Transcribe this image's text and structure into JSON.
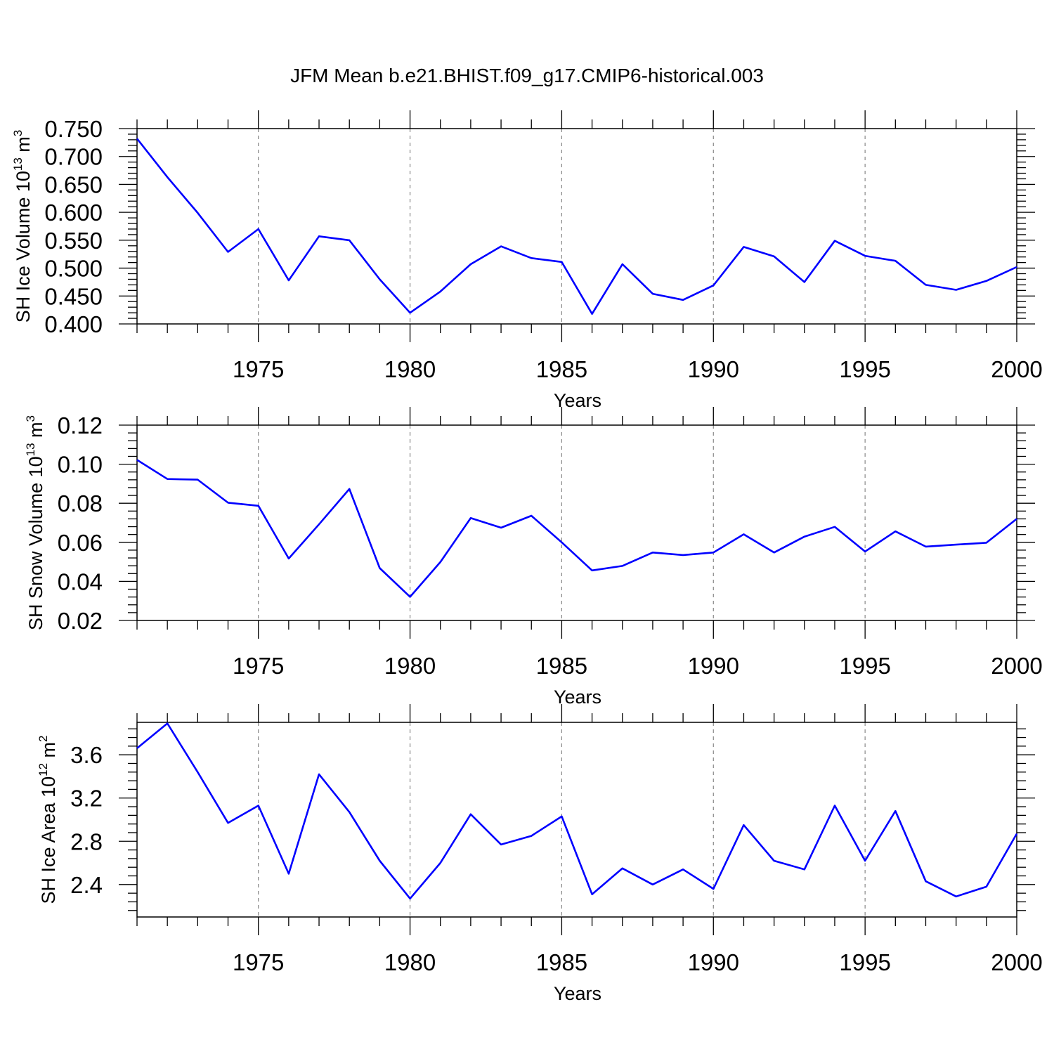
{
  "title": "JFM Mean b.e21.BHIST.f09_g17.CMIP6-historical.003",
  "line_color": "#0000ff",
  "chart_data": [
    {
      "type": "line",
      "title": "",
      "xlabel": "Years",
      "ylabel": {
        "prefix": "SH Ice Volume 10",
        "exp": "13",
        "unit": " m",
        "unit_exp": "3"
      },
      "xlim": [
        1971,
        2000
      ],
      "ylim": [
        0.4,
        0.75
      ],
      "yticks": [
        "0.400",
        "0.450",
        "0.500",
        "0.550",
        "0.600",
        "0.650",
        "0.700",
        "0.750"
      ],
      "ytick_values": [
        0.4,
        0.45,
        0.5,
        0.55,
        0.6,
        0.65,
        0.7,
        0.75
      ],
      "xticks": [
        "1975",
        "1980",
        "1985",
        "1990",
        "1995",
        "2000"
      ],
      "xtick_values": [
        1975,
        1980,
        1985,
        1990,
        1995,
        2000
      ],
      "x": [
        1971,
        1972,
        1973,
        1974,
        1975,
        1976,
        1977,
        1978,
        1979,
        1980,
        1981,
        1982,
        1983,
        1984,
        1985,
        1986,
        1987,
        1988,
        1989,
        1990,
        1991,
        1992,
        1993,
        1994,
        1995,
        1996,
        1997,
        1998,
        1999,
        2000
      ],
      "series": [
        {
          "values": [
            0.732,
            0.663,
            0.599,
            0.529,
            0.57,
            0.478,
            0.557,
            0.55,
            0.48,
            0.42,
            0.458,
            0.507,
            0.539,
            0.518,
            0.511,
            0.418,
            0.507,
            0.454,
            0.443,
            0.469,
            0.538,
            0.521,
            0.475,
            0.549,
            0.522,
            0.513,
            0.47,
            0.461,
            0.477,
            0.502
          ]
        }
      ]
    },
    {
      "type": "line",
      "title": "",
      "xlabel": "Years",
      "ylabel": {
        "prefix": "SH Snow Volume 10",
        "exp": "13",
        "unit": " m",
        "unit_exp": "3"
      },
      "xlim": [
        1971,
        2000
      ],
      "ylim": [
        0.02,
        0.12
      ],
      "yticks": [
        "0.02",
        "0.04",
        "0.06",
        "0.08",
        "0.10",
        "0.12"
      ],
      "ytick_values": [
        0.02,
        0.04,
        0.06,
        0.08,
        0.1,
        0.12
      ],
      "xticks": [
        "1975",
        "1980",
        "1985",
        "1990",
        "1995",
        "2000"
      ],
      "xtick_values": [
        1975,
        1980,
        1985,
        1990,
        1995,
        2000
      ],
      "x": [
        1971,
        1972,
        1973,
        1974,
        1975,
        1976,
        1977,
        1978,
        1979,
        1980,
        1981,
        1982,
        1983,
        1984,
        1985,
        1986,
        1987,
        1988,
        1989,
        1990,
        1991,
        1992,
        1993,
        1994,
        1995,
        1996,
        1997,
        1998,
        1999,
        2000
      ],
      "series": [
        {
          "values": [
            0.1022,
            0.0924,
            0.0921,
            0.0803,
            0.0787,
            0.0517,
            0.0692,
            0.0873,
            0.0468,
            0.0321,
            0.0499,
            0.0724,
            0.0675,
            0.0736,
            0.06,
            0.0456,
            0.0479,
            0.0548,
            0.0535,
            0.0548,
            0.0641,
            0.0548,
            0.0629,
            0.0679,
            0.0553,
            0.0656,
            0.0578,
            0.0588,
            0.0598,
            0.072
          ]
        }
      ]
    },
    {
      "type": "line",
      "title": "",
      "xlabel": "Years",
      "ylabel": {
        "prefix": "SH Ice Area 10",
        "exp": "12",
        "unit": " m",
        "unit_exp": "2"
      },
      "xlim": [
        1971,
        2000
      ],
      "ylim": [
        2.1,
        3.9
      ],
      "yticks": [
        "2.4",
        "2.8",
        "3.2",
        "3.6"
      ],
      "ytick_values": [
        2.4,
        2.8,
        3.2,
        3.6
      ],
      "xticks": [
        "1975",
        "1980",
        "1985",
        "1990",
        "1995",
        "2000"
      ],
      "xtick_values": [
        1975,
        1980,
        1985,
        1990,
        1995,
        2000
      ],
      "x": [
        1971,
        1972,
        1973,
        1974,
        1975,
        1976,
        1977,
        1978,
        1979,
        1980,
        1981,
        1982,
        1983,
        1984,
        1985,
        1986,
        1987,
        1988,
        1989,
        1990,
        1991,
        1992,
        1993,
        1994,
        1995,
        1996,
        1997,
        1998,
        1999,
        2000
      ],
      "series": [
        {
          "values": [
            3.66,
            3.89,
            3.44,
            2.97,
            3.13,
            2.5,
            3.42,
            3.07,
            2.62,
            2.27,
            2.6,
            3.05,
            2.77,
            2.85,
            3.03,
            2.31,
            2.55,
            2.4,
            2.54,
            2.36,
            2.95,
            2.62,
            2.54,
            3.13,
            2.62,
            3.08,
            2.43,
            2.29,
            2.38,
            2.87
          ]
        }
      ]
    }
  ]
}
